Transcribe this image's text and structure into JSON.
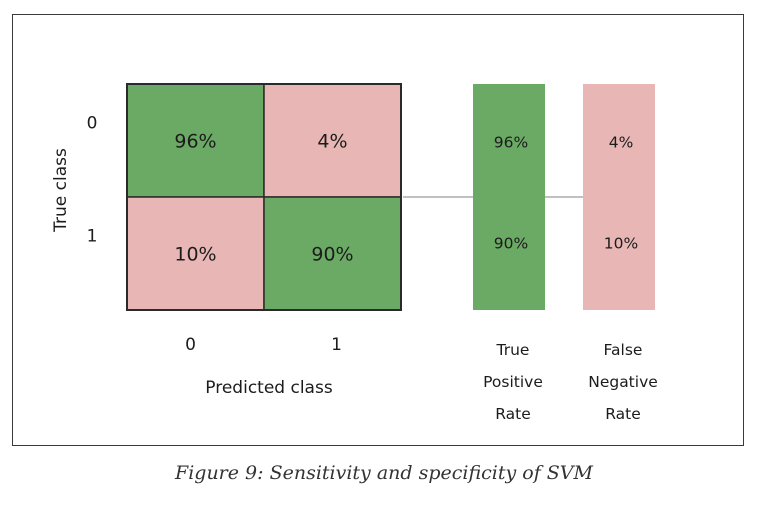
{
  "chart_data": {
    "type": "heatmap",
    "title": "",
    "xlabel": "Predicted class",
    "ylabel": "True class",
    "x_categories": [
      "0",
      "1"
    ],
    "y_categories": [
      "0",
      "1"
    ],
    "matrix": [
      [
        "96%",
        "4%"
      ],
      [
        "10%",
        "90%"
      ]
    ],
    "cell_kinds": [
      [
        "correct",
        "error"
      ],
      [
        "error",
        "correct"
      ]
    ],
    "rate_columns": [
      {
        "label_lines": [
          "True",
          "Positive",
          "Rate"
        ],
        "values": [
          "96%",
          "90%"
        ],
        "kind": "correct"
      },
      {
        "label_lines": [
          "False",
          "Negative",
          "Rate"
        ],
        "values": [
          "4%",
          "10%"
        ],
        "kind": "error"
      }
    ],
    "colors": {
      "correct": "#6aaa64",
      "error": "#e8b7b5",
      "grid": "#2a2a2a",
      "divider": "#9a9a9a"
    }
  },
  "caption": "Figure 9: Sensitivity and specificity of SVM"
}
